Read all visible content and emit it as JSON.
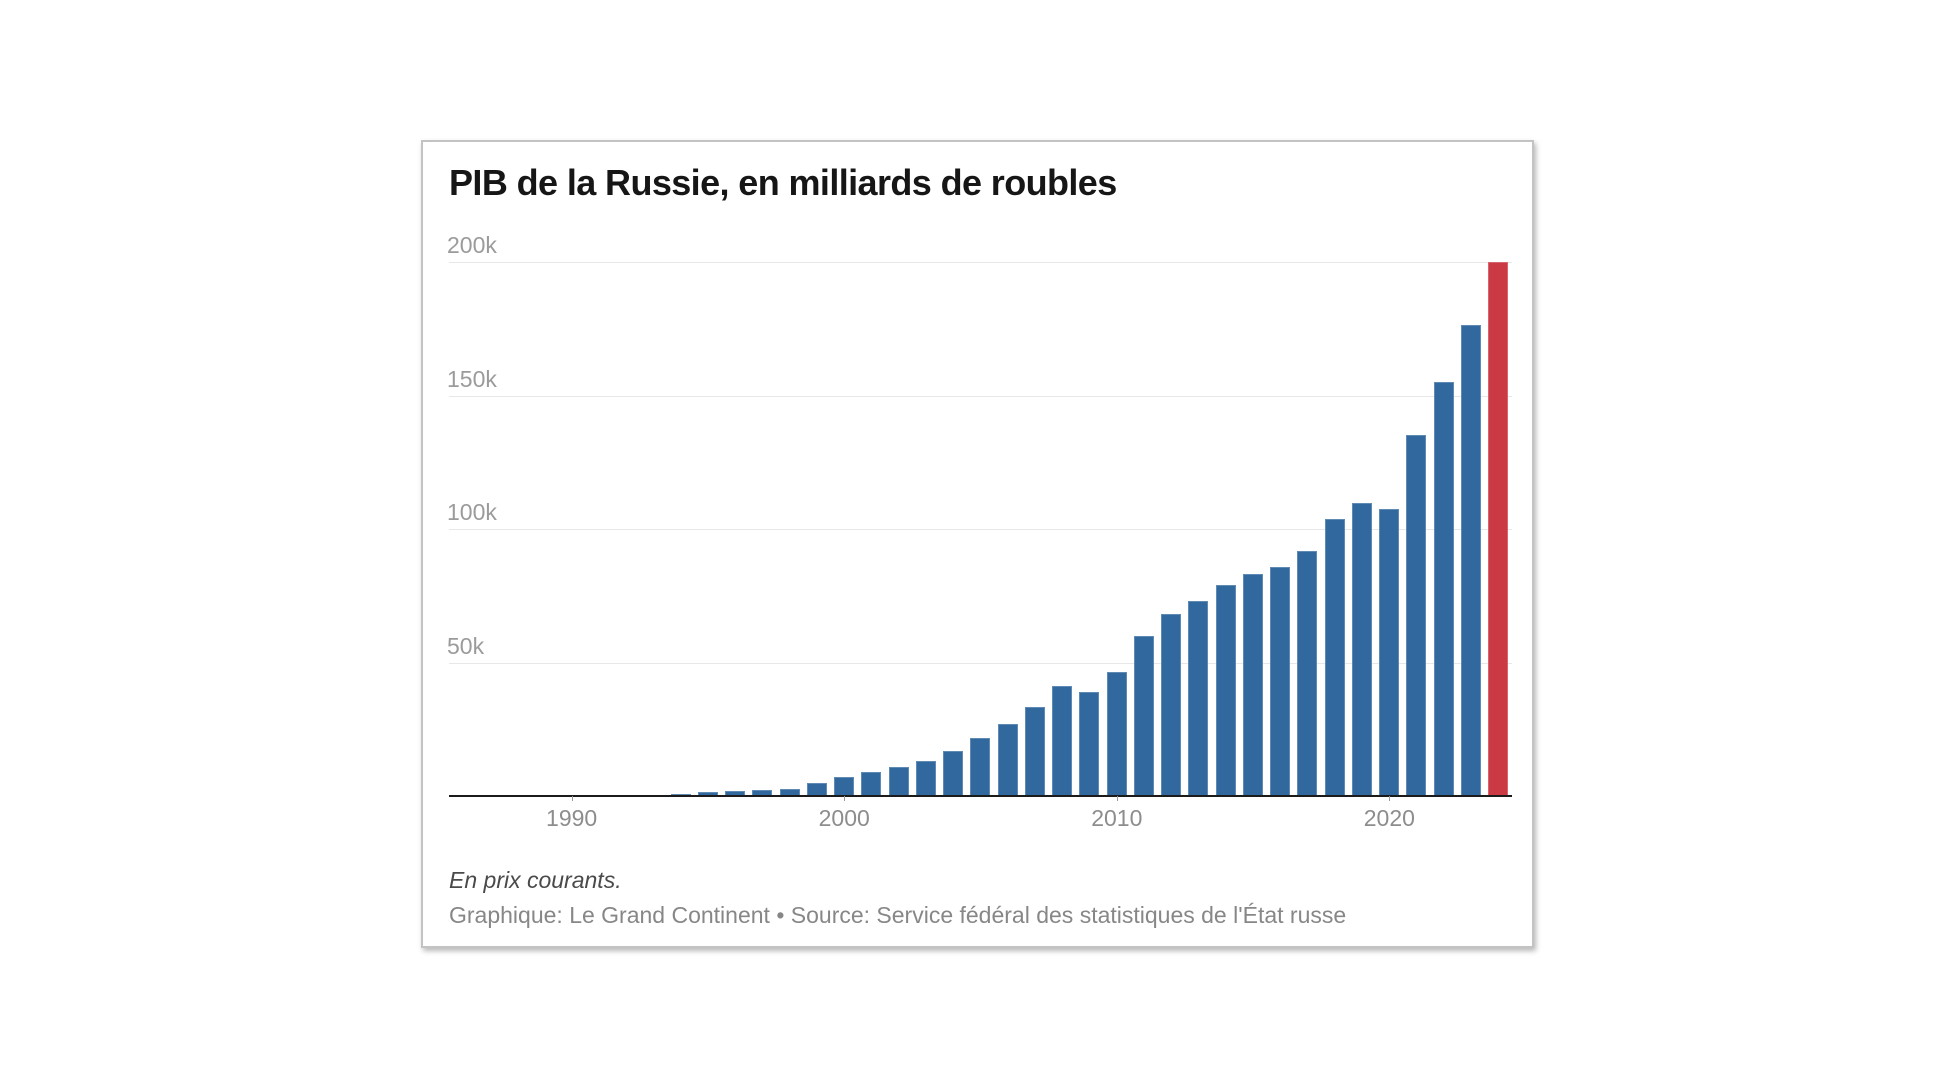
{
  "card": {
    "title": "PIB de la Russie, en milliards de roubles",
    "footnote": "En prix courants.",
    "source": "Graphique: Le Grand Continent • Source: Service fédéral des statistiques de l'État russe"
  },
  "colors": {
    "bar": "#31699e",
    "bar_highlight": "#cb3a44",
    "gridline": "#e7e7e7",
    "axis": "#1b1b1b",
    "y_label_text": "#9b9b9b",
    "x_label_text": "#8d8d8d",
    "title_text": "#161616",
    "footnote_text": "#4a4a4a",
    "source_text": "#878787",
    "card_border": "#c3c3c3"
  },
  "chart_data": {
    "type": "bar",
    "title": "PIB de la Russie, en milliards de roubles",
    "unit": "milliards de roubles",
    "x": [
      1986,
      1987,
      1988,
      1989,
      1990,
      1991,
      1992,
      1993,
      1994,
      1995,
      1996,
      1997,
      1998,
      1999,
      2000,
      2001,
      2002,
      2003,
      2004,
      2005,
      2006,
      2007,
      2008,
      2009,
      2010,
      2011,
      2012,
      2013,
      2014,
      2015,
      2016,
      2017,
      2018,
      2019,
      2020,
      2021,
      2022,
      2023,
      2024
    ],
    "values": [
      0,
      0,
      0,
      1,
      1,
      1,
      19,
      172,
      611,
      1429,
      2008,
      2343,
      2630,
      4823,
      7306,
      8944,
      10831,
      13208,
      17027,
      21610,
      26917,
      33248,
      41277,
      38807,
      46309,
      60114,
      68103,
      72986,
      79030,
      83087,
      85616,
      91843,
      103862,
      109608,
      107658,
      135295,
      155200,
      176300,
      200000
    ],
    "highlight_year": 2024,
    "y_ticks": [
      "50k",
      "100k",
      "150k",
      "200k"
    ],
    "y_tick_values": [
      50000,
      100000,
      150000,
      200000
    ],
    "x_ticks": [
      1990,
      2000,
      2010,
      2020
    ],
    "ylim": [
      0,
      200000
    ],
    "grid": "horizontal",
    "legend": "none"
  }
}
